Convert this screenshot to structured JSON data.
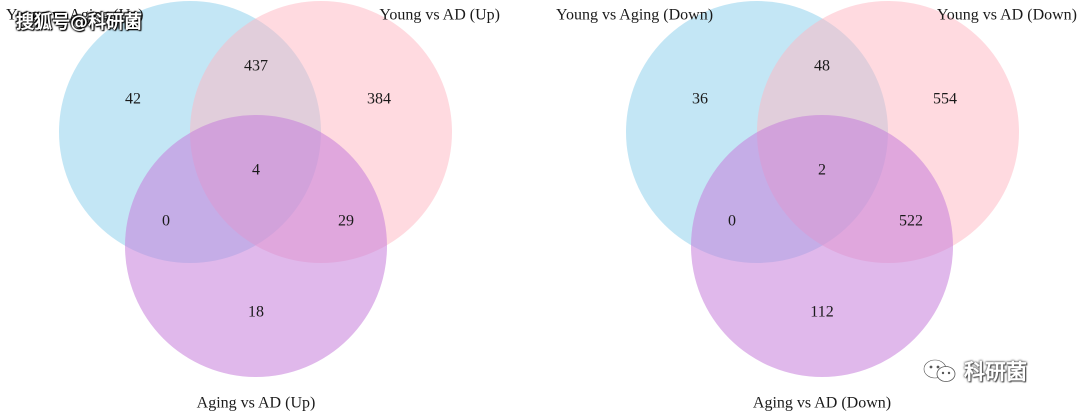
{
  "watermarks": {
    "top_left": "搜狐号@科研菌",
    "bottom_right": "科研菌",
    "bottom_right_icon": "wechat-icon"
  },
  "colors": {
    "set_a": "#87CEEB",
    "set_b": "#FFB6C1",
    "set_c": "#C77DDB"
  },
  "venns": [
    {
      "id": "up",
      "labels": {
        "a": "Young vs Aging (Up)",
        "b": "Young vs AD (Up)",
        "c": "Aging vs AD (Up)"
      },
      "regions": {
        "a_only": "42",
        "ab": "437",
        "b_only": "384",
        "abc": "4",
        "ac": "0",
        "bc": "29",
        "c_only": "18"
      }
    },
    {
      "id": "down",
      "labels": {
        "a": "Young vs Aging (Down)",
        "b": "Young vs AD (Down)",
        "c": "Aging vs AD (Down)"
      },
      "regions": {
        "a_only": "36",
        "ab": "48",
        "b_only": "554",
        "abc": "2",
        "ac": "0",
        "bc": "522",
        "c_only": "112"
      }
    }
  ]
}
